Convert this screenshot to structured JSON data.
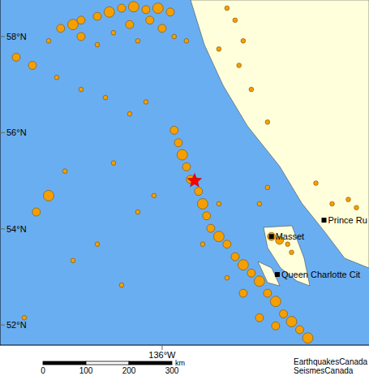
{
  "chart_data": {
    "type": "scatter",
    "x": [
      -139.63,
      -139.19,
      -138.9,
      -138.32,
      -137.89,
      -137.45,
      -137.02,
      -136.58,
      -136.15,
      -135.71,
      -138.9,
      -137.74,
      -137.16,
      -136.0,
      -135.57,
      -135.13,
      -136.87,
      -138.32,
      -140.06,
      -136.44,
      -133.68,
      -133.39,
      -133.1,
      -133.25,
      -132.81,
      -132.23,
      -133.97,
      -141.22,
      -140.64,
      -139.77,
      -138.9,
      -138.03,
      -137.16,
      -136.58,
      -140.06,
      -140.5,
      -139.48,
      -140.93,
      -139.19,
      -138.32,
      -137.45,
      -136.87,
      -137.74,
      -136.29,
      -135.57,
      -135.42,
      -135.28,
      -135.13,
      -134.99,
      -134.7,
      -134.55,
      -134.41,
      -134.26,
      -133.97,
      -133.68,
      -133.39,
      -133.1,
      -132.81,
      -132.52,
      -132.23,
      -131.94,
      -131.66,
      -131.37,
      -131.08,
      -130.79,
      -133.1,
      -132.52,
      -133.68,
      -131.94,
      -133.97,
      -134.55,
      -132.09,
      -131.8,
      -131.51,
      -131.37,
      -130.5,
      -129.92,
      -129.34,
      -129.05,
      -132.23,
      -132.52
    ],
    "y": [
      58.17,
      58.25,
      58.34,
      58.42,
      58.51,
      58.59,
      58.62,
      58.56,
      58.59,
      58.51,
      58.0,
      58.08,
      58.25,
      58.17,
      58.0,
      57.91,
      57.91,
      57.83,
      57.91,
      58.34,
      58.59,
      58.34,
      57.91,
      57.4,
      56.9,
      56.22,
      57.74,
      57.57,
      57.4,
      57.15,
      56.9,
      56.73,
      56.39,
      56.64,
      54.69,
      54.35,
      55.2,
      52.15,
      53.34,
      53.68,
      52.83,
      54.35,
      55.37,
      54.69,
      56.05,
      55.79,
      55.54,
      55.29,
      55.03,
      54.78,
      54.52,
      54.27,
      54.01,
      53.84,
      53.68,
      53.42,
      53.25,
      53.08,
      52.91,
      52.66,
      52.49,
      52.23,
      52.07,
      51.9,
      51.73,
      52.66,
      52.15,
      52.98,
      51.98,
      54.52,
      53.68,
      53.84,
      53.76,
      53.68,
      53.51,
      54.95,
      54.52,
      54.61,
      54.44,
      54.86,
      54.52
    ],
    "size": [
      2,
      3,
      2,
      2,
      3,
      2,
      3,
      2,
      3,
      2,
      2,
      1,
      2,
      2,
      1,
      1,
      1,
      1,
      1,
      2,
      1,
      1,
      1,
      1,
      1,
      1,
      1,
      2,
      2,
      1,
      1,
      1,
      1,
      1,
      3,
      2,
      1,
      1,
      1,
      1,
      1,
      1,
      1,
      1,
      2,
      2,
      3,
      2,
      2,
      2,
      3,
      2,
      2,
      3,
      2,
      2,
      3,
      2,
      3,
      2,
      3,
      2,
      3,
      2,
      3,
      2,
      2,
      1,
      2,
      1,
      1,
      2,
      2,
      1,
      1,
      1,
      1,
      1,
      1,
      1,
      1
    ],
    "color": "#f5a000",
    "xlim": [
      -141.8,
      -128.6
    ],
    "ylim": [
      51.58,
      58.76
    ],
    "xticks": [
      {
        "value": -136,
        "label": "136°W"
      }
    ],
    "yticks": [
      {
        "value": 52,
        "label": "52°N"
      },
      {
        "value": 54,
        "label": "54°N"
      },
      {
        "value": 56,
        "label": "56°N"
      },
      {
        "value": 58,
        "label": "58°N"
      }
    ],
    "epicenter": {
      "x": -134.84,
      "y": 55.0,
      "color": "#ff0000"
    },
    "places": [
      {
        "name": "Prince Ru",
        "x": -130.21,
        "y": 54.18
      },
      {
        "name": "Masset",
        "x": -132.09,
        "y": 53.84
      },
      {
        "name": "Queen Charlotte Cit",
        "x": -131.88,
        "y": 53.05
      }
    ],
    "scale_bar": {
      "ticks": [
        0,
        100,
        200,
        300
      ],
      "unit": "km"
    },
    "credits": [
      "EarthquakesCanada",
      "SeismesCanada"
    ]
  }
}
